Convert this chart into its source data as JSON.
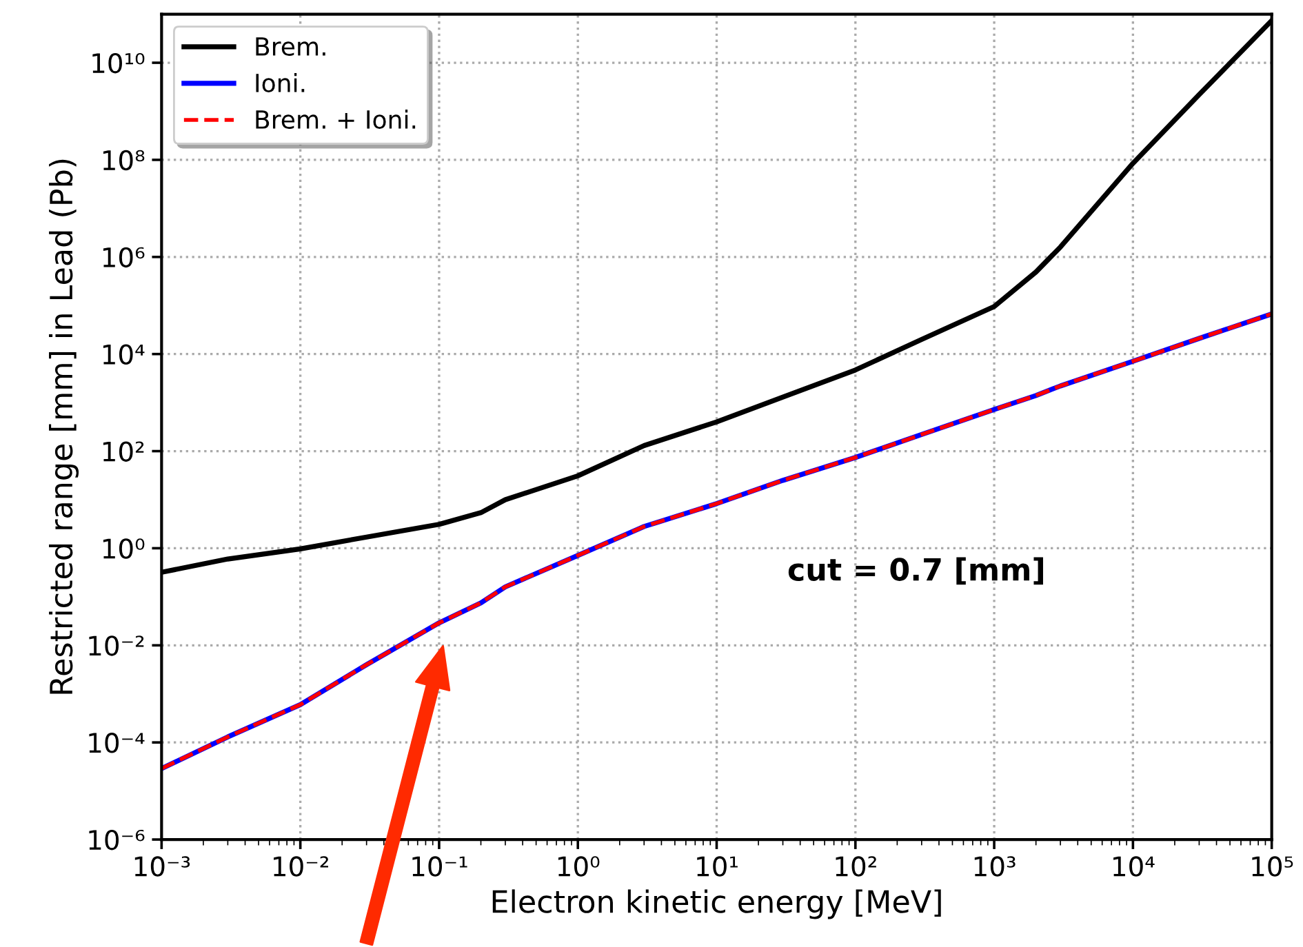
{
  "chart_data": {
    "type": "line",
    "xlabel": "Electron kinetic energy [MeV]",
    "ylabel": "Restricted range [mm] in Lead (Pb)",
    "log": "xy",
    "grid": true,
    "legend": "top left",
    "marker": "none",
    "xlim": [
      0.001,
      100000
    ],
    "ylim": [
      1e-06,
      100000000000
    ],
    "xticks": [
      {
        "value": 0.001,
        "label": "10⁻³"
      },
      {
        "value": 0.01,
        "label": "10⁻²"
      },
      {
        "value": 0.1,
        "label": "10⁻¹"
      },
      {
        "value": 1,
        "label": "10⁰"
      },
      {
        "value": 10,
        "label": "10¹"
      },
      {
        "value": 100,
        "label": "10²"
      },
      {
        "value": 1000,
        "label": "10³"
      },
      {
        "value": 10000,
        "label": "10⁴"
      },
      {
        "value": 100000,
        "label": "10⁵"
      }
    ],
    "yticks": [
      {
        "value": 1e-06,
        "label": "10⁻⁶"
      },
      {
        "value": 0.0001,
        "label": "10⁻⁴"
      },
      {
        "value": 0.01,
        "label": "10⁻²"
      },
      {
        "value": 1,
        "label": "10⁰"
      },
      {
        "value": 100,
        "label": "10²"
      },
      {
        "value": 10000,
        "label": "10⁴"
      },
      {
        "value": 1000000,
        "label": "10⁶"
      },
      {
        "value": 100000000,
        "label": "10⁸"
      },
      {
        "value": 10000000000,
        "label": "10¹⁰"
      }
    ],
    "x": [
      0.001,
      0.003,
      0.01,
      0.03,
      0.1,
      0.2,
      0.3,
      1,
      3,
      10,
      30,
      100,
      300,
      1000,
      2000,
      3000,
      10000,
      30000,
      100000
    ],
    "series": [
      {
        "name": "Brem.",
        "color": "#000000",
        "line_style": "solid",
        "values": [
          0.32,
          0.6,
          0.97,
          1.7,
          3.1,
          5.4,
          10,
          31,
          130,
          400,
          1300,
          4700,
          20000,
          95000,
          490000,
          1600000,
          85000000,
          2200000000,
          74000000000
        ]
      },
      {
        "name": "Ioni.",
        "color": "#0000ff",
        "line_style": "solid",
        "values": [
          2.9e-05,
          0.00013,
          0.0006,
          0.004,
          0.029,
          0.075,
          0.16,
          0.71,
          2.8,
          8.3,
          25,
          74,
          220,
          720,
          1400,
          2200,
          7100,
          21000,
          67000
        ]
      },
      {
        "name": "Brem. + Ioni.",
        "color": "#ff0000",
        "line_style": "dashed",
        "values": [
          2.9e-05,
          0.00013,
          0.0006,
          0.004,
          0.029,
          0.075,
          0.16,
          0.71,
          2.8,
          8.3,
          25,
          74,
          220,
          720,
          1400,
          2200,
          7100,
          21000,
          67000
        ]
      }
    ],
    "annotations": [
      "cut = 0.7 [mm]"
    ]
  }
}
